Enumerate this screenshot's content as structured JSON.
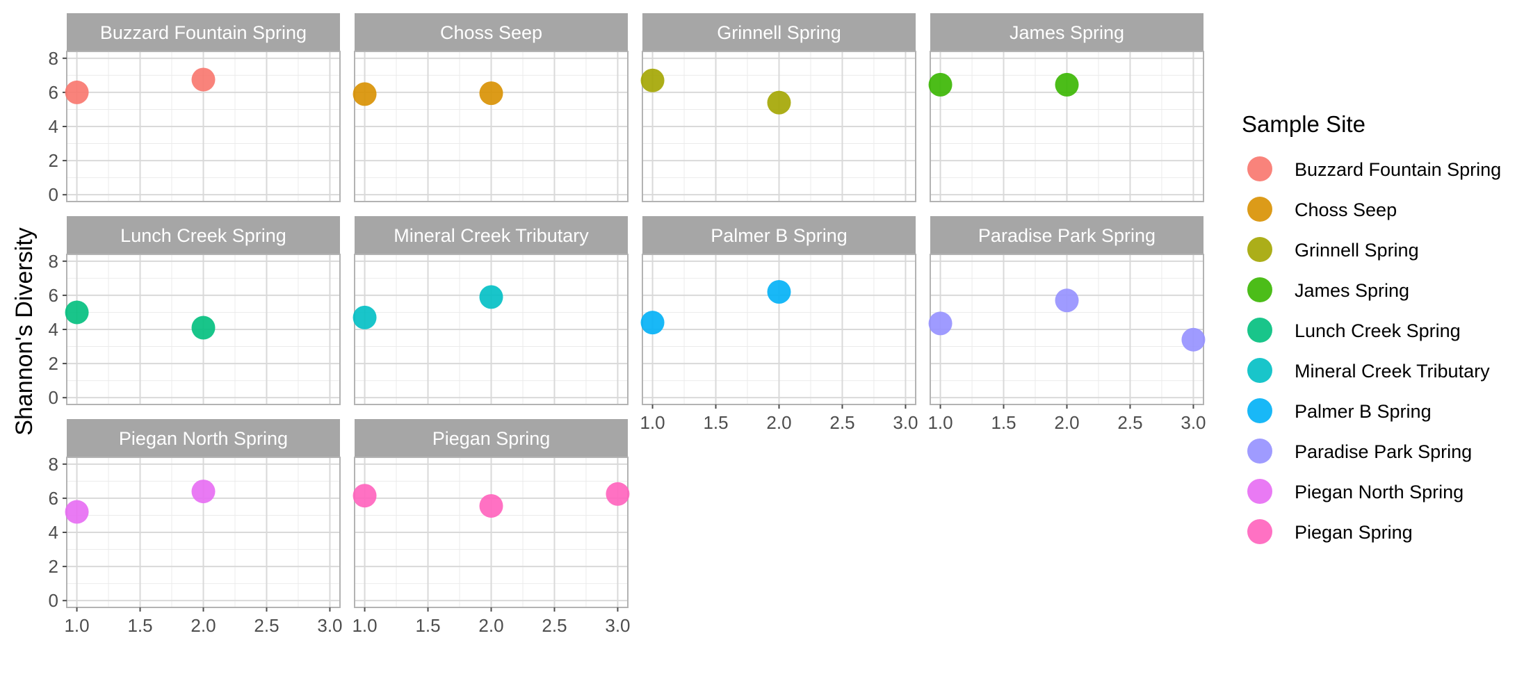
{
  "chart_data": {
    "type": "scatter",
    "ylabel": "Shannon's Diversity",
    "xlabel": "",
    "xlim": [
      0.92,
      3.08
    ],
    "ylim": [
      -0.4,
      8.4
    ],
    "x_ticks": [
      1.0,
      1.5,
      2.0,
      2.5,
      3.0
    ],
    "x_tick_labels": [
      "1.0",
      "1.5",
      "2.0",
      "2.5",
      "3.0"
    ],
    "y_ticks": [
      0,
      2,
      4,
      6,
      8
    ],
    "y_tick_labels": [
      "0",
      "2",
      "4",
      "6",
      "8"
    ],
    "grid": true,
    "legend": {
      "title": "Sample Site",
      "placement": "right"
    },
    "series": [
      {
        "name": "Buzzard Fountain Spring",
        "color": "#F8766D",
        "points": [
          {
            "x": 1,
            "y": 6.0
          },
          {
            "x": 2,
            "y": 6.75
          }
        ]
      },
      {
        "name": "Choss Seep",
        "color": "#D89000",
        "points": [
          {
            "x": 1,
            "y": 5.9
          },
          {
            "x": 2,
            "y": 5.95
          }
        ]
      },
      {
        "name": "Grinnell Spring",
        "color": "#A3A500",
        "points": [
          {
            "x": 1,
            "y": 6.7
          },
          {
            "x": 2,
            "y": 5.4
          }
        ]
      },
      {
        "name": "James Spring",
        "color": "#39B600",
        "points": [
          {
            "x": 1,
            "y": 6.45
          },
          {
            "x": 2,
            "y": 6.45
          }
        ]
      },
      {
        "name": "Lunch Creek Spring",
        "color": "#00BF7D",
        "points": [
          {
            "x": 1,
            "y": 5.0
          },
          {
            "x": 2,
            "y": 4.1
          }
        ]
      },
      {
        "name": "Mineral Creek Tributary",
        "color": "#00BFC4",
        "points": [
          {
            "x": 1,
            "y": 4.7
          },
          {
            "x": 2,
            "y": 5.9
          }
        ]
      },
      {
        "name": "Palmer B Spring",
        "color": "#00B0F6",
        "points": [
          {
            "x": 1,
            "y": 4.4
          },
          {
            "x": 2,
            "y": 6.2
          }
        ]
      },
      {
        "name": "Paradise Park Spring",
        "color": "#9590FF",
        "points": [
          {
            "x": 1,
            "y": 4.35
          },
          {
            "x": 2,
            "y": 5.7
          },
          {
            "x": 3,
            "y": 3.4
          }
        ]
      },
      {
        "name": "Piegan North Spring",
        "color": "#E76BF3",
        "points": [
          {
            "x": 1,
            "y": 5.2
          },
          {
            "x": 2,
            "y": 6.4
          }
        ]
      },
      {
        "name": "Piegan Spring",
        "color": "#FF62BC",
        "points": [
          {
            "x": 1,
            "y": 6.15
          },
          {
            "x": 2,
            "y": 5.55
          },
          {
            "x": 3,
            "y": 6.25
          }
        ]
      }
    ]
  }
}
